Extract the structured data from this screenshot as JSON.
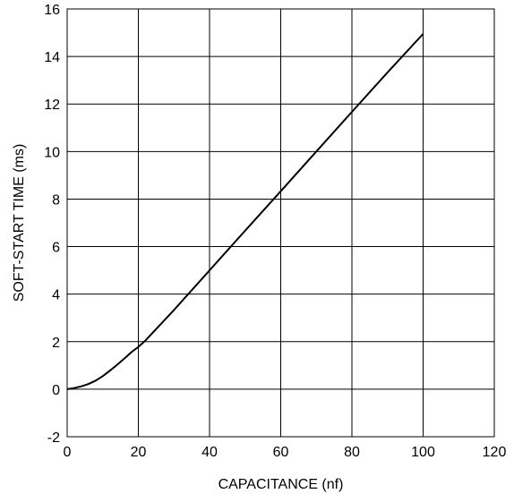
{
  "chart_data": {
    "type": "line",
    "title": "",
    "xlabel": "CAPACITANCE (nf)",
    "ylabel": "SOFT-START TIME (ms)",
    "xlim": [
      0,
      120
    ],
    "ylim": [
      -2,
      16
    ],
    "xticks": [
      "0",
      "20",
      "40",
      "60",
      "80",
      "100",
      "120"
    ],
    "yticks": [
      "-2",
      "0",
      "2",
      "4",
      "6",
      "8",
      "10",
      "12",
      "14",
      "16"
    ],
    "grid": true,
    "colors": {
      "line": "#000000",
      "grid": "#000000",
      "background": "#ffffff"
    },
    "series": [
      {
        "x": [
          0,
          2,
          4,
          6,
          8,
          10,
          12,
          14,
          16,
          18,
          20,
          22,
          30,
          40,
          50,
          60,
          70,
          80,
          90,
          100
        ],
        "y": [
          0.0,
          0.05,
          0.12,
          0.22,
          0.36,
          0.55,
          0.78,
          1.02,
          1.28,
          1.55,
          1.78,
          2.05,
          3.33,
          5.0,
          6.67,
          8.33,
          10.0,
          11.67,
          13.33,
          14.95
        ]
      }
    ]
  }
}
